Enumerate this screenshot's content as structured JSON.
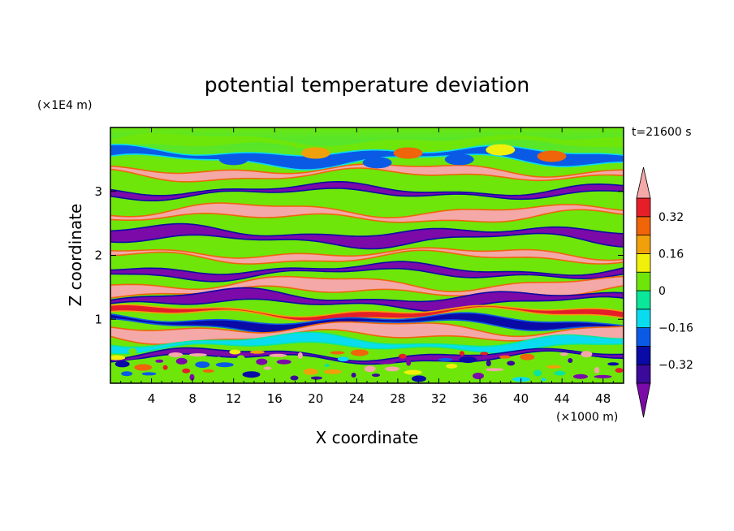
{
  "chart_data": {
    "type": "heatmap",
    "title": "potential temperature deviation",
    "time_label": "t=21600 s",
    "xlabel": "X coordinate",
    "ylabel": "Z coordinate",
    "x_unit": "(×1000 m)",
    "y_unit": "(×1E4 m)",
    "xlim": [
      0,
      50
    ],
    "ylim": [
      0,
      4
    ],
    "x_ticks": [
      4,
      8,
      12,
      16,
      20,
      24,
      28,
      32,
      36,
      40,
      44,
      48
    ],
    "y_ticks": [
      1,
      2,
      3
    ],
    "colorbar": {
      "levels": [
        -0.4,
        -0.32,
        -0.24,
        -0.16,
        -0.08,
        0,
        0.08,
        0.16,
        0.24,
        0.32,
        0.4
      ],
      "tick_labels": [
        "0.32",
        "0.16",
        "0",
        "−0.16",
        "−0.32"
      ],
      "tick_values": [
        0.32,
        0.16,
        0,
        -0.16,
        -0.32
      ],
      "colors": [
        "#7b0aa8",
        "#3b0a9a",
        "#0a0aa6",
        "#0a5ae6",
        "#0adcf0",
        "#0ae69a",
        "#6ee60a",
        "#f0f00a",
        "#f0a00a",
        "#f0640a",
        "#e61e28",
        "#f4a8a8"
      ],
      "extend": "both"
    },
    "layers": [
      {
        "z": 3.75,
        "value": 0.06
      },
      {
        "z": 3.55,
        "value": -0.18
      },
      {
        "z": 3.3,
        "value": 0.42
      },
      {
        "z": 3.0,
        "value": -0.45
      },
      {
        "z": 2.65,
        "value": 0.45
      },
      {
        "z": 2.3,
        "value": -0.45
      },
      {
        "z": 2.0,
        "value": 0.42
      },
      {
        "z": 1.75,
        "value": -0.42
      },
      {
        "z": 1.5,
        "value": 0.45
      },
      {
        "z": 1.3,
        "value": -0.42
      },
      {
        "z": 1.1,
        "value": 0.35
      },
      {
        "z": 0.95,
        "value": -0.3
      },
      {
        "z": 0.8,
        "value": 0.4
      },
      {
        "z": 0.62,
        "value": -0.12
      },
      {
        "z": 0.42,
        "value": -0.45
      },
      {
        "z": 0.2,
        "value": 0.05
      }
    ]
  }
}
